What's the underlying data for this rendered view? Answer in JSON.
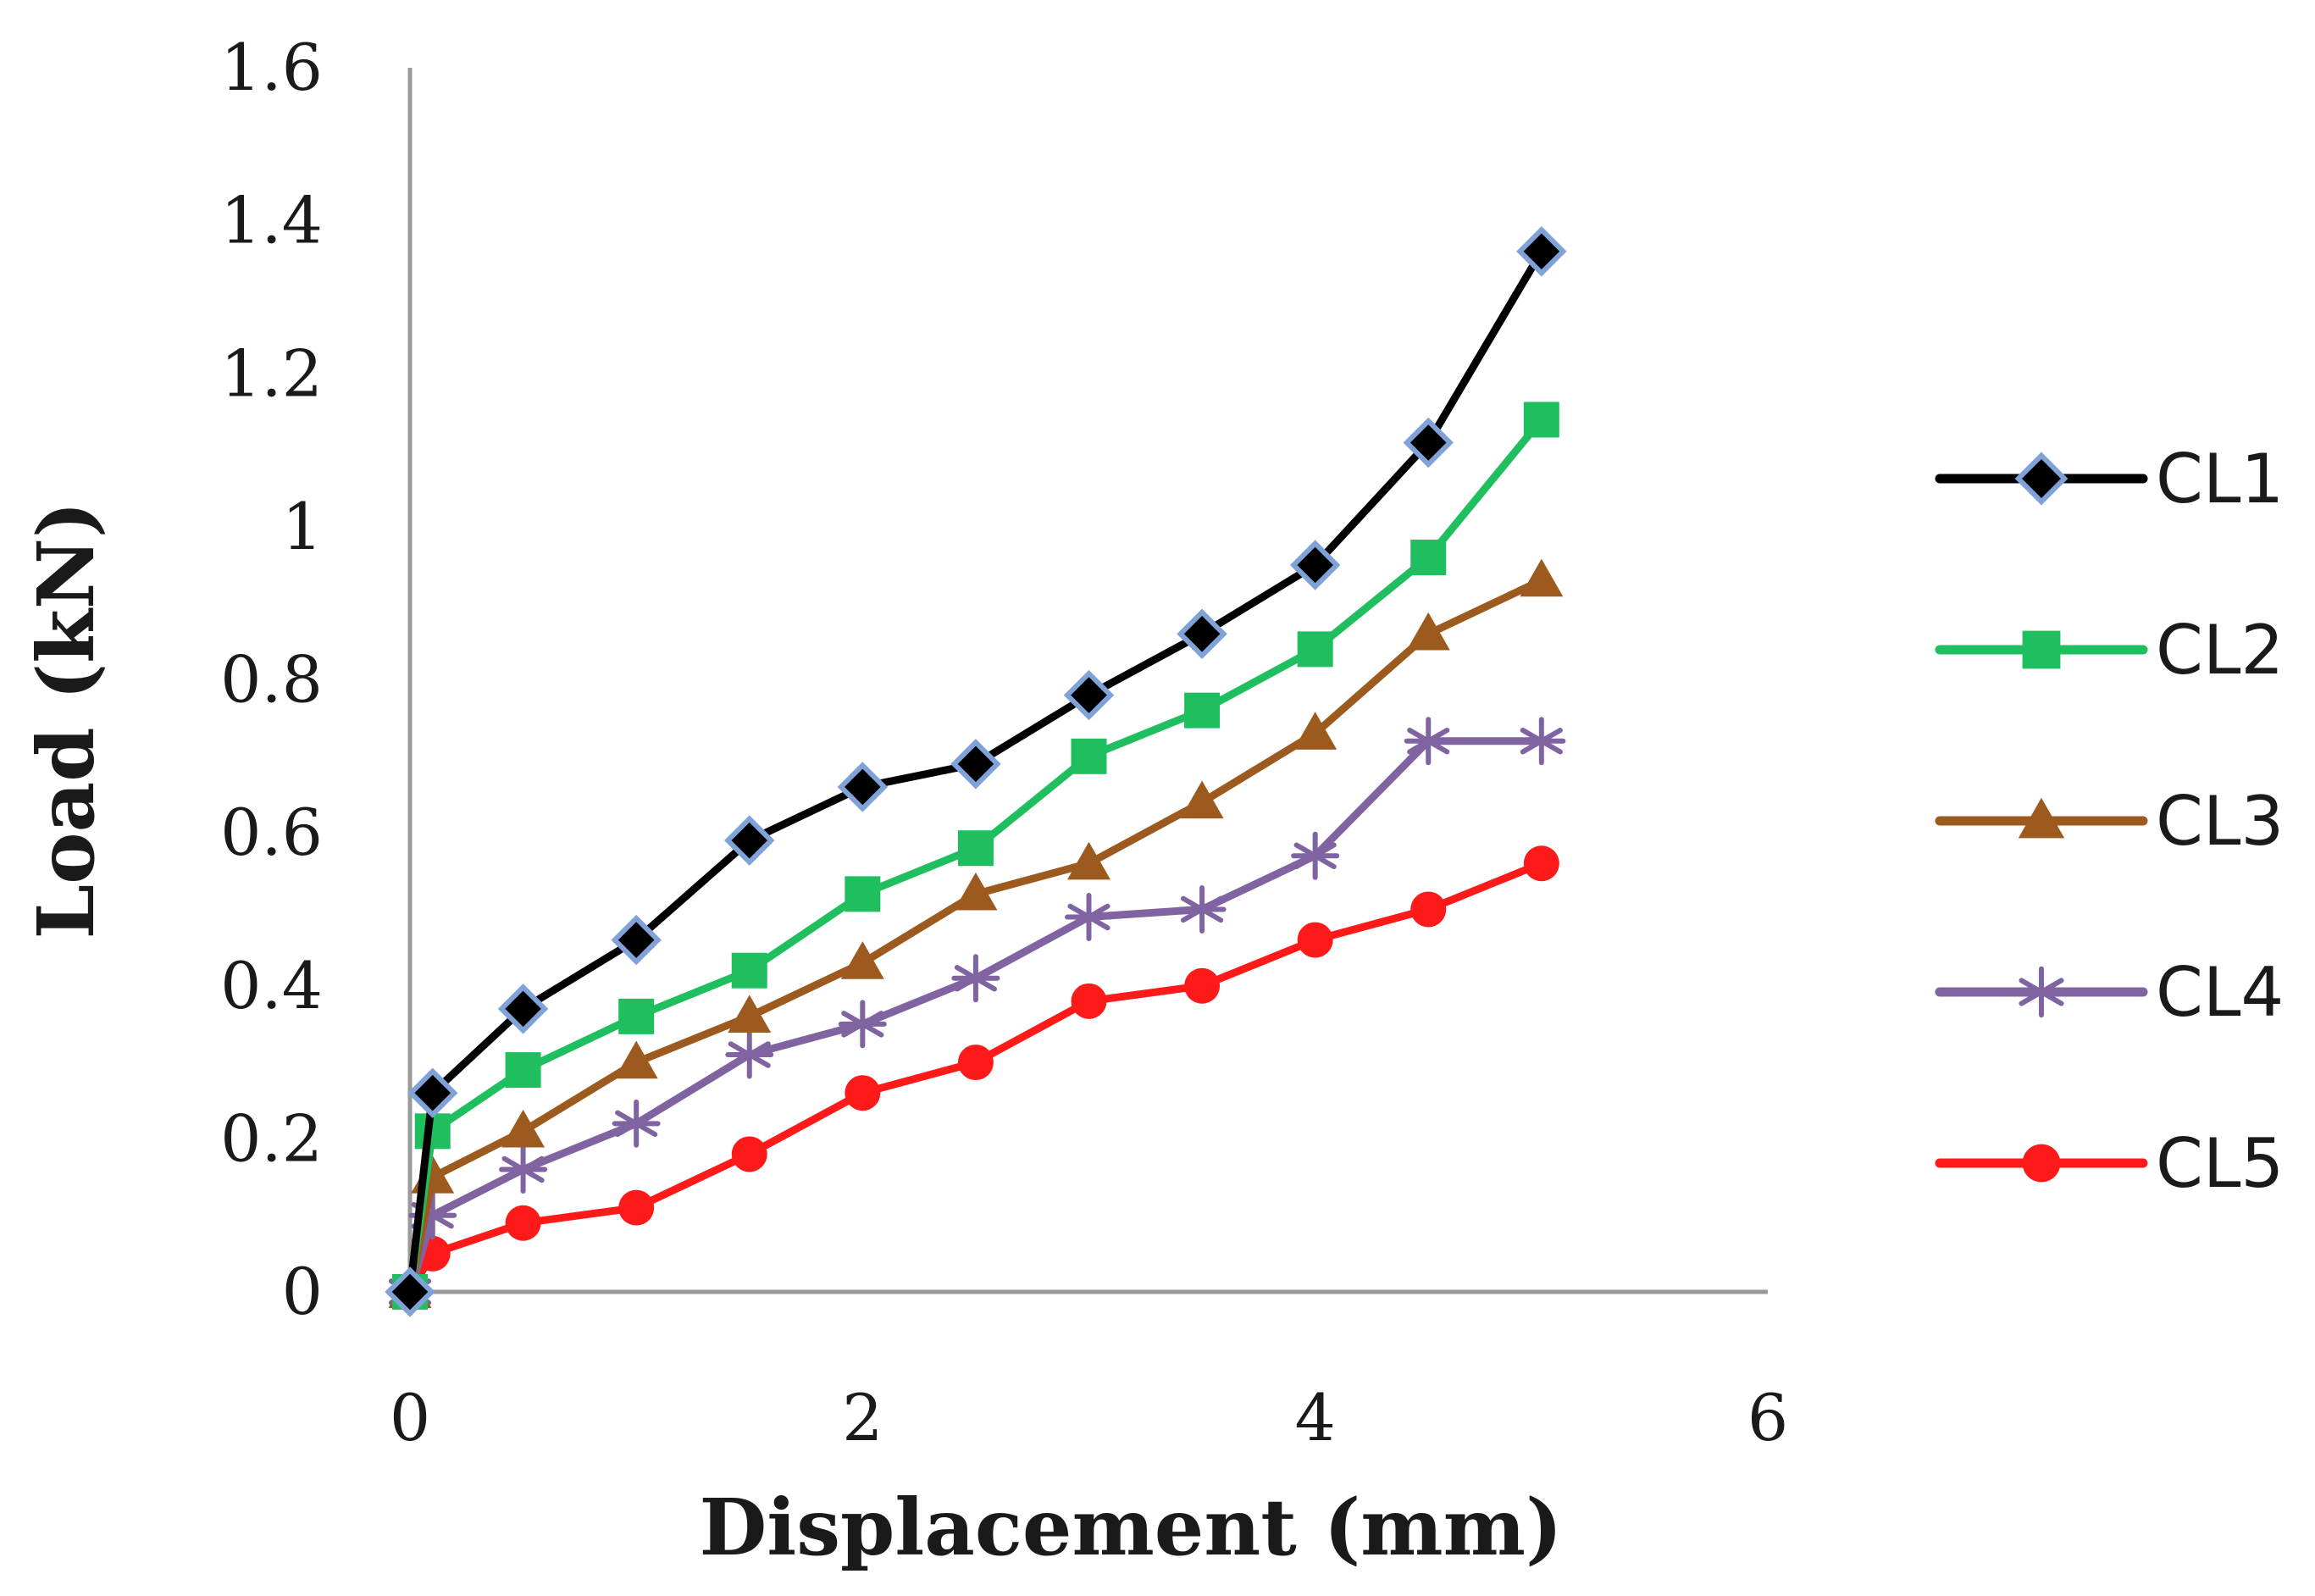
{
  "chart_data": {
    "type": "line",
    "xlabel": "Displacement (mm)",
    "ylabel": "Load (kN)",
    "xlim": [
      0,
      6
    ],
    "ylim": [
      0,
      1.6
    ],
    "xticks": [
      "0",
      "2",
      "4",
      "6"
    ],
    "yticks": [
      "0",
      "0.2",
      "0.4",
      "0.6",
      "0.8",
      "1",
      "1.2",
      "1.4",
      "1.6"
    ],
    "grid": false,
    "legend_position": "right",
    "x": [
      0,
      0.1,
      0.5,
      1,
      1.5,
      2,
      2.5,
      3,
      3.5,
      4,
      4.5,
      5
    ],
    "series": [
      {
        "name": "CL1",
        "color": "#000000",
        "marker": "diamond",
        "marker_fill": "#000000",
        "marker_edge": "#7fa3d9",
        "values": [
          0,
          0.26,
          0.37,
          0.46,
          0.59,
          0.66,
          0.69,
          0.78,
          0.86,
          0.95,
          1.11,
          1.36
        ]
      },
      {
        "name": "CL2",
        "color": "#1fbf5f",
        "marker": "square",
        "marker_fill": "#1fbf5f",
        "marker_edge": "#1fbf5f",
        "values": [
          0,
          0.21,
          0.29,
          0.36,
          0.42,
          0.52,
          0.58,
          0.7,
          0.76,
          0.84,
          0.96,
          1.14
        ]
      },
      {
        "name": "CL3",
        "color": "#9c5a1e",
        "marker": "triangle",
        "marker_fill": "#9c5a1e",
        "marker_edge": "#9c5a1e",
        "values": [
          0,
          0.15,
          0.21,
          0.3,
          0.36,
          0.43,
          0.52,
          0.56,
          0.64,
          0.73,
          0.86,
          0.93
        ]
      },
      {
        "name": "CL4",
        "color": "#8064a2",
        "marker": "asterisk",
        "marker_fill": "#8064a2",
        "marker_edge": "#8064a2",
        "values": [
          0,
          0.1,
          0.16,
          0.22,
          0.31,
          0.35,
          0.41,
          0.49,
          0.5,
          0.57,
          0.72,
          0.72
        ]
      },
      {
        "name": "CL5",
        "color": "#ff1a1a",
        "marker": "circle",
        "marker_fill": "#ff1a1a",
        "marker_edge": "#ff1a1a",
        "values": [
          0,
          0.05,
          0.09,
          0.11,
          0.18,
          0.26,
          0.3,
          0.38,
          0.4,
          0.46,
          0.5,
          0.56
        ]
      }
    ]
  }
}
